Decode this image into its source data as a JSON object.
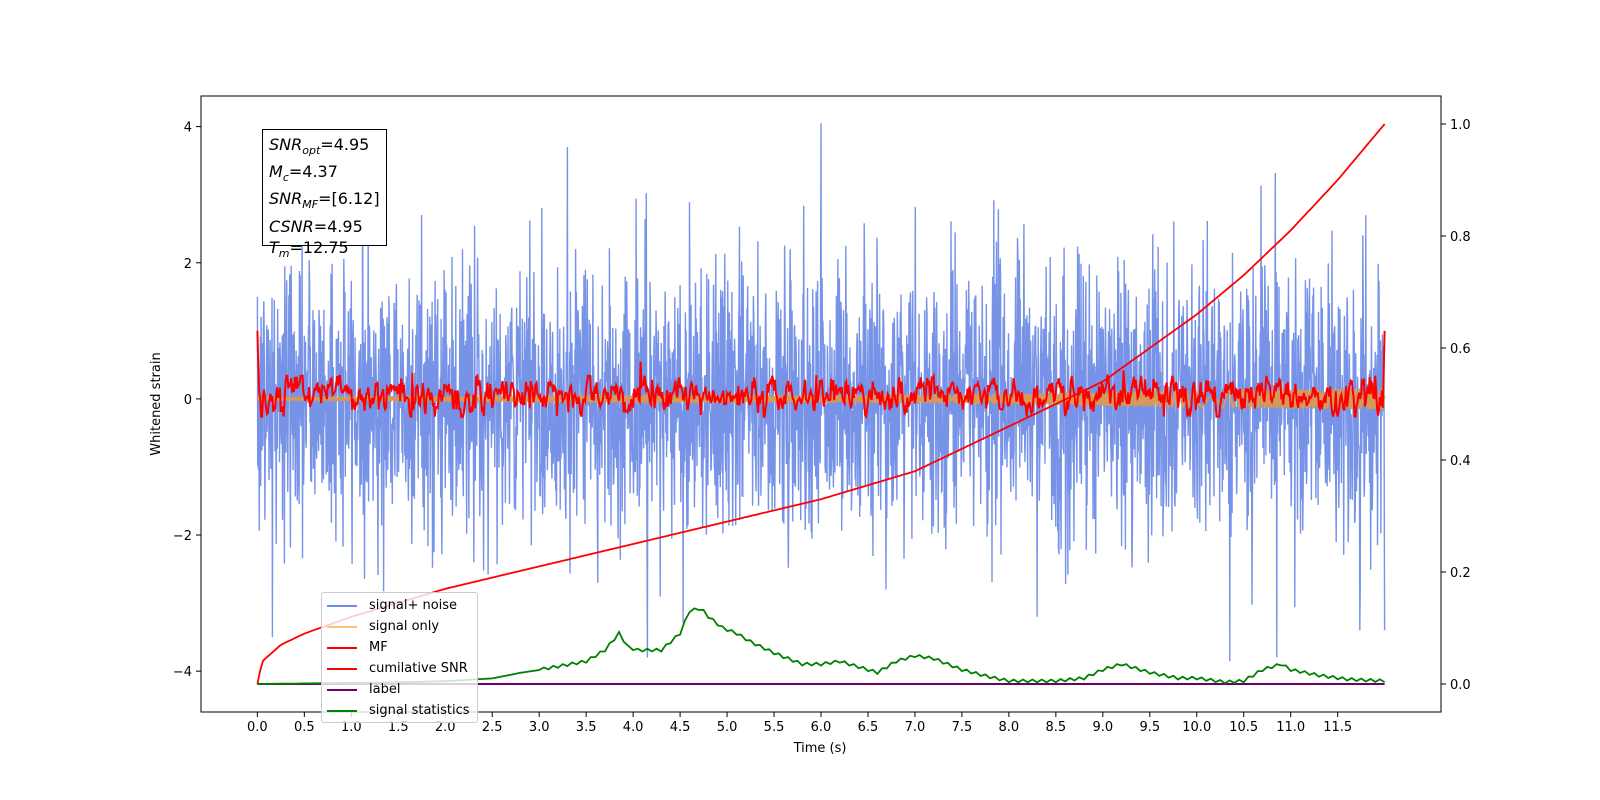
{
  "chart_data": {
    "type": "line",
    "xlabel": "Time (s)",
    "ylabel": "Whitened strain",
    "xlim": [
      -0.6,
      12.6
    ],
    "ylim_left": [
      -4.6,
      4.45
    ],
    "ylim_right": [
      -0.05,
      1.05
    ],
    "x_ticks": [
      "0.0",
      "0.5",
      "1.0",
      "1.5",
      "2.0",
      "2.5",
      "3.0",
      "3.5",
      "4.0",
      "4.5",
      "5.0",
      "5.5",
      "6.0",
      "6.5",
      "7.0",
      "7.5",
      "8.0",
      "8.5",
      "9.0",
      "9.5",
      "10.0",
      "10.5",
      "11.0",
      "11.5"
    ],
    "y_ticks_left": [
      "4",
      "2",
      "0",
      "−2",
      "−4"
    ],
    "y_ticks_right": [
      "1.0",
      "0.8",
      "0.6",
      "0.4",
      "0.2",
      "0.0"
    ],
    "annotation": {
      "lines": [
        {
          "var": "SNR",
          "sub": "opt",
          "value": "=4.95"
        },
        {
          "var": "M",
          "sub": "c",
          "value": "=4.37"
        },
        {
          "var": "SNR",
          "sub": "MF",
          "value": "=[6.12]"
        },
        {
          "var": "CSNR",
          "sub": "",
          "value": "=4.95"
        },
        {
          "var": "T",
          "sub": "m",
          "value": "=12.75"
        }
      ]
    },
    "legend": {
      "placement": "lower-left",
      "entries": [
        {
          "label": "signal+ noise",
          "color": "#6f8de6"
        },
        {
          "label": "signal only",
          "color": "#ffbf80"
        },
        {
          "label": "MF",
          "color": "#ff0000"
        },
        {
          "label": "cumilative SNR",
          "color": "#ff0000"
        },
        {
          "label": "label",
          "color": "#6b006b"
        },
        {
          "label": "signal statistics",
          "color": "#008000"
        }
      ]
    },
    "series": [
      {
        "name": "signal+ noise",
        "axis": "left",
        "color": "#7793e8",
        "pattern": "gaussian noise, std ≈ 1",
        "x_range": [
          0.0,
          12.0
        ],
        "extreme_values": [
          [
            0.0,
            1.5
          ],
          [
            0.16,
            -3.5
          ],
          [
            3.3,
            3.7
          ],
          [
            4.15,
            -3.8
          ],
          [
            6.0,
            4.05
          ],
          [
            8.3,
            -3.2
          ],
          [
            10.35,
            -3.85
          ],
          [
            10.85,
            -3.8
          ]
        ]
      },
      {
        "name": "signal only",
        "axis": "left",
        "color": "#d59a5a",
        "pattern": "chirp growing in amplitude",
        "x": [
          0.0,
          2.0,
          4.0,
          6.0,
          8.0,
          9.0,
          10.0,
          11.0,
          12.0
        ],
        "amplitude": [
          0.02,
          0.03,
          0.04,
          0.05,
          0.08,
          0.1,
          0.12,
          0.14,
          0.16
        ]
      },
      {
        "name": "MF",
        "axis": "left",
        "color": "#ff0000",
        "pattern": "noisy matched-filter output around 0",
        "x_range": [
          0.0,
          12.0
        ],
        "values_at_edges": [
          1.0,
          1.0
        ],
        "peaks": [
          [
            4.08,
            0.55
          ],
          [
            9.22,
            0.42
          ],
          [
            1.65,
            0.38
          ],
          [
            5.95,
            0.35
          ]
        ]
      },
      {
        "name": "cumilative SNR",
        "axis": "right",
        "color": "#ff0000",
        "x": [
          0.0,
          0.05,
          0.25,
          0.5,
          1.0,
          2.0,
          3.0,
          4.0,
          5.0,
          6.0,
          7.0,
          8.0,
          8.5,
          9.0,
          9.5,
          10.0,
          10.5,
          11.0,
          11.5,
          12.0
        ],
        "values": [
          0.0,
          0.04,
          0.07,
          0.09,
          0.12,
          0.17,
          0.21,
          0.25,
          0.29,
          0.33,
          0.38,
          0.46,
          0.5,
          0.54,
          0.6,
          0.66,
          0.73,
          0.81,
          0.9,
          1.0
        ]
      },
      {
        "name": "label",
        "axis": "right",
        "color": "#6b006b",
        "x": [
          0.0,
          12.0
        ],
        "values": [
          0.0,
          0.0
        ]
      },
      {
        "name": "signal statistics",
        "axis": "right",
        "color": "#008000",
        "x": [
          0.0,
          1.5,
          2.0,
          2.5,
          2.8,
          3.0,
          3.5,
          3.7,
          3.85,
          3.95,
          4.05,
          4.3,
          4.5,
          4.6,
          4.72,
          4.8,
          4.95,
          5.1,
          5.25,
          5.5,
          5.8,
          6.0,
          6.2,
          6.4,
          6.6,
          6.8,
          7.0,
          7.2,
          7.5,
          7.8,
          8.0,
          8.5,
          8.8,
          9.0,
          9.2,
          9.5,
          9.8,
          10.0,
          10.3,
          10.5,
          10.7,
          10.9,
          11.0,
          11.3,
          11.6,
          12.0
        ],
        "values": [
          0.0,
          0.003,
          0.005,
          0.01,
          0.02,
          0.025,
          0.04,
          0.06,
          0.09,
          0.065,
          0.06,
          0.06,
          0.09,
          0.13,
          0.135,
          0.12,
          0.1,
          0.09,
          0.075,
          0.055,
          0.035,
          0.035,
          0.04,
          0.03,
          0.02,
          0.04,
          0.05,
          0.045,
          0.025,
          0.012,
          0.005,
          0.005,
          0.01,
          0.025,
          0.035,
          0.02,
          0.01,
          0.01,
          0.003,
          0.005,
          0.025,
          0.035,
          0.025,
          0.015,
          0.008,
          0.005
        ]
      }
    ]
  }
}
